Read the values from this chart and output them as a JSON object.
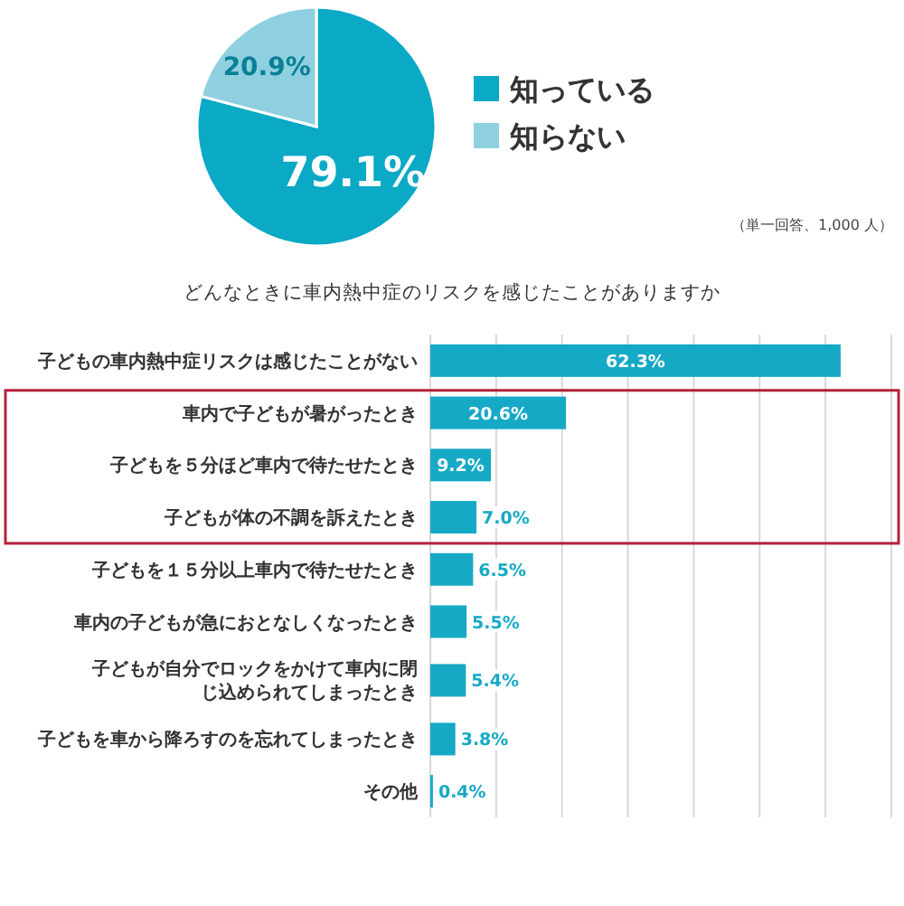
{
  "chart_data": [
    {
      "type": "pie",
      "categories": [
        "知っている",
        "知らない"
      ],
      "values": [
        79.1,
        20.9
      ],
      "colors": [
        "#0aa9c5",
        "#8ed0df"
      ],
      "value_labels": [
        "79.1%",
        "20.9%"
      ],
      "legend": "right",
      "annotations": [
        "（単一回答、1,000 人）"
      ]
    },
    {
      "type": "bar",
      "orientation": "horizontal",
      "title": "どんなときに車内熱中症のリスクを感じたことがありますか",
      "categories": [
        "子どもの車内熱中症リスクは感じたことがない",
        "車内で子どもが暑がったとき",
        "子どもを５分ほど車内で待たせたとき",
        "子どもが体の不調を訴えたとき",
        "子どもを１５分以上車内で待たせたとき",
        "車内の子どもが急におとなしくなったとき",
        "子どもが自分でロックをかけて車内に閉じ込められてしまったとき",
        "子どもを車から降ろすのを忘れてしまったとき",
        "その他"
      ],
      "values": [
        62.3,
        20.6,
        9.2,
        7.0,
        6.5,
        5.5,
        5.4,
        3.8,
        0.4
      ],
      "value_labels": [
        "62.3%",
        "20.6%",
        "9.2%",
        "7.0%",
        "6.5%",
        "5.5%",
        "5.4%",
        "3.8%",
        "0.4%"
      ],
      "color": "#16a9c6",
      "xlim": [
        0,
        70
      ],
      "xticks": [
        {
          "value": 0,
          "label": null
        },
        {
          "value": 10,
          "label": null
        },
        {
          "value": 20,
          "label": null
        },
        {
          "value": 30,
          "label": null
        },
        {
          "value": 40,
          "label": null
        },
        {
          "value": 50,
          "label": null
        },
        {
          "value": 60,
          "label": null
        },
        {
          "value": 70,
          "label": null
        }
      ],
      "grid": "x",
      "tick_labels": "y"
    }
  ]
}
